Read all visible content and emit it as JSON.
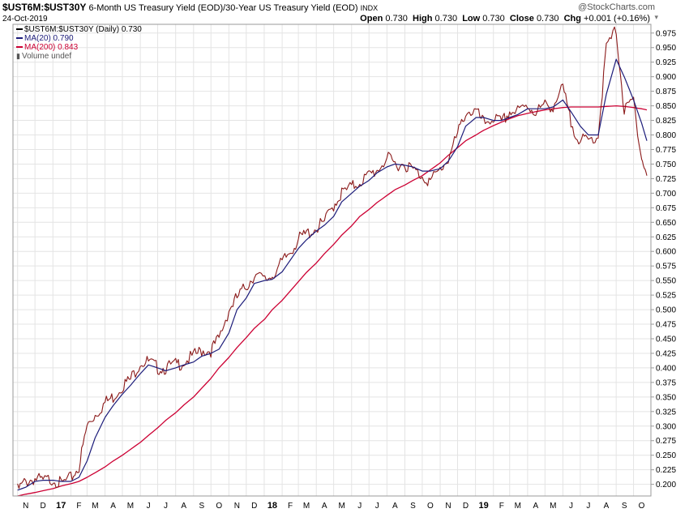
{
  "header": {
    "symbol": "$UST6M:$UST30Y",
    "description": "6-Month US Treasury Yield (EOD)/30-Year US Treasury Yield (EOD)",
    "exchange": "INDX",
    "date": "24-Oct-2019",
    "watermark": "@StockCharts.com",
    "open_label": "Open",
    "open": "0.730",
    "high_label": "High",
    "high": "0.730",
    "low_label": "Low",
    "low": "0.730",
    "close_label": "Close",
    "close": "0.730",
    "chg_label": "Chg",
    "chg": "+0.001 (+0.16%)"
  },
  "legend": {
    "price": "$UST6M:$UST30Y (Daily) 0.730",
    "ma20": "MA(20) 0.790",
    "ma200": "MA(200) 0.843",
    "volume": "Volume undef"
  },
  "colors": {
    "price": "#8b1a1a",
    "price_up": "#000000",
    "ma20": "#1c1c7a",
    "ma200": "#cc0033",
    "grid": "#e4e4e4",
    "frame": "#9a9a9a"
  },
  "chart_data": {
    "type": "line",
    "ylim": [
      0.18,
      0.99
    ],
    "yticks": [
      "0.200",
      "0.225",
      "0.250",
      "0.275",
      "0.300",
      "0.325",
      "0.350",
      "0.375",
      "0.400",
      "0.425",
      "0.450",
      "0.475",
      "0.500",
      "0.525",
      "0.550",
      "0.575",
      "0.600",
      "0.625",
      "0.650",
      "0.675",
      "0.700",
      "0.725",
      "0.750",
      "0.775",
      "0.800",
      "0.825",
      "0.850",
      "0.875",
      "0.900",
      "0.925",
      "0.950",
      "0.975"
    ],
    "xticks": [
      "N",
      "D",
      "17",
      "F",
      "M",
      "A",
      "M",
      "J",
      "J",
      "A",
      "S",
      "O",
      "N",
      "D",
      "18",
      "F",
      "M",
      "A",
      "M",
      "J",
      "J",
      "A",
      "S",
      "O",
      "N",
      "D",
      "19",
      "F",
      "M",
      "A",
      "M",
      "J",
      "J",
      "A",
      "S",
      "O"
    ],
    "x": [
      "2016-11-01",
      "2016-11-15",
      "2016-12-01",
      "2016-12-15",
      "2017-01-02",
      "2017-01-15",
      "2017-02-01",
      "2017-02-15",
      "2017-03-01",
      "2017-03-15",
      "2017-04-01",
      "2017-04-15",
      "2017-05-01",
      "2017-05-15",
      "2017-06-01",
      "2017-06-15",
      "2017-07-01",
      "2017-07-15",
      "2017-08-01",
      "2017-08-15",
      "2017-09-01",
      "2017-09-15",
      "2017-10-01",
      "2017-10-15",
      "2017-11-01",
      "2017-11-15",
      "2017-12-01",
      "2017-12-15",
      "2018-01-02",
      "2018-01-15",
      "2018-02-01",
      "2018-02-15",
      "2018-03-01",
      "2018-03-15",
      "2018-04-01",
      "2018-04-15",
      "2018-05-01",
      "2018-05-15",
      "2018-06-01",
      "2018-06-15",
      "2018-07-01",
      "2018-07-15",
      "2018-08-01",
      "2018-08-15",
      "2018-09-01",
      "2018-09-15",
      "2018-10-01",
      "2018-10-15",
      "2018-11-01",
      "2018-11-15",
      "2018-12-01",
      "2018-12-15",
      "2019-01-02",
      "2019-01-15",
      "2019-02-01",
      "2019-02-15",
      "2019-03-01",
      "2019-03-15",
      "2019-04-01",
      "2019-04-15",
      "2019-05-01",
      "2019-05-15",
      "2019-06-01",
      "2019-06-15",
      "2019-07-01",
      "2019-07-15",
      "2019-08-01",
      "2019-08-15",
      "2019-09-01",
      "2019-09-15",
      "2019-10-01",
      "2019-10-15",
      "2019-10-24"
    ],
    "series": [
      {
        "name": "$UST6M:$UST30Y (Daily) 0.730",
        "values": [
          0.19,
          0.205,
          0.21,
          0.205,
          0.21,
          0.2,
          0.21,
          0.23,
          0.3,
          0.32,
          0.34,
          0.35,
          0.37,
          0.38,
          0.41,
          0.41,
          0.4,
          0.4,
          0.405,
          0.41,
          0.42,
          0.43,
          0.43,
          0.45,
          0.5,
          0.52,
          0.54,
          0.56,
          0.55,
          0.56,
          0.58,
          0.6,
          0.62,
          0.63,
          0.64,
          0.65,
          0.68,
          0.7,
          0.71,
          0.72,
          0.73,
          0.74,
          0.76,
          0.75,
          0.75,
          0.74,
          0.73,
          0.72,
          0.74,
          0.76,
          0.8,
          0.84,
          0.84,
          0.82,
          0.83,
          0.82,
          0.84,
          0.84,
          0.85,
          0.84,
          0.85,
          0.85,
          0.88,
          0.82,
          0.79,
          0.79,
          0.8,
          0.95,
          0.98,
          0.84,
          0.86,
          0.76,
          0.73
        ]
      },
      {
        "name": "MA(20) 0.790",
        "values": [
          0.19,
          0.195,
          0.205,
          0.207,
          0.207,
          0.205,
          0.205,
          0.212,
          0.24,
          0.28,
          0.315,
          0.335,
          0.355,
          0.37,
          0.39,
          0.405,
          0.4,
          0.395,
          0.4,
          0.405,
          0.41,
          0.42,
          0.425,
          0.432,
          0.46,
          0.5,
          0.52,
          0.545,
          0.55,
          0.552,
          0.565,
          0.585,
          0.605,
          0.62,
          0.635,
          0.645,
          0.66,
          0.685,
          0.7,
          0.712,
          0.722,
          0.735,
          0.745,
          0.75,
          0.748,
          0.745,
          0.738,
          0.738,
          0.742,
          0.755,
          0.78,
          0.815,
          0.83,
          0.83,
          0.825,
          0.825,
          0.83,
          0.835,
          0.845,
          0.845,
          0.845,
          0.848,
          0.86,
          0.84,
          0.815,
          0.8,
          0.8,
          0.87,
          0.93,
          0.9,
          0.86,
          0.82,
          0.79
        ]
      },
      {
        "name": "MA(200) 0.843",
        "values": [
          0.18,
          0.183,
          0.186,
          0.189,
          0.193,
          0.197,
          0.201,
          0.205,
          0.212,
          0.22,
          0.23,
          0.24,
          0.25,
          0.26,
          0.272,
          0.284,
          0.297,
          0.31,
          0.323,
          0.336,
          0.35,
          0.365,
          0.382,
          0.4,
          0.418,
          0.435,
          0.452,
          0.468,
          0.484,
          0.5,
          0.516,
          0.532,
          0.548,
          0.564,
          0.58,
          0.596,
          0.612,
          0.628,
          0.644,
          0.66,
          0.672,
          0.684,
          0.696,
          0.706,
          0.714,
          0.722,
          0.73,
          0.74,
          0.752,
          0.765,
          0.778,
          0.79,
          0.8,
          0.808,
          0.816,
          0.822,
          0.828,
          0.833,
          0.837,
          0.84,
          0.843,
          0.845,
          0.847,
          0.848,
          0.848,
          0.848,
          0.848,
          0.849,
          0.85,
          0.849,
          0.847,
          0.845,
          0.843
        ]
      }
    ]
  }
}
